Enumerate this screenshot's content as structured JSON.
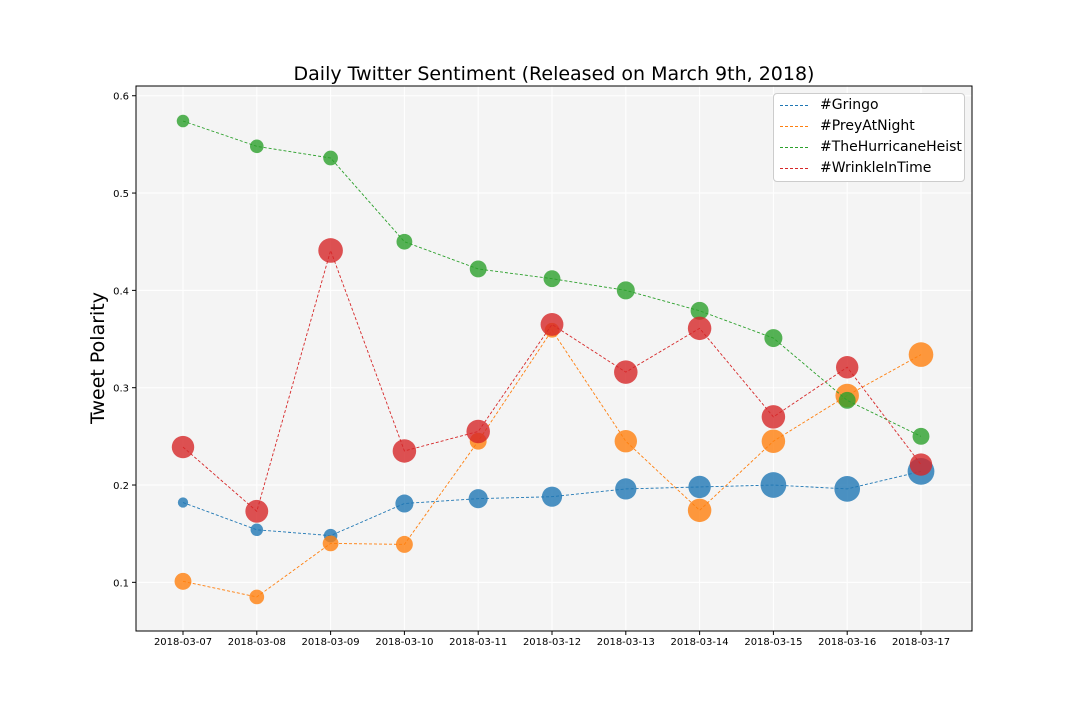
{
  "chart_data": {
    "type": "scatter",
    "title": "Daily Twitter Sentiment (Released on March 9th, 2018)",
    "xlabel": "",
    "ylabel": "Tweet Polarity",
    "x": [
      "2018-03-07",
      "2018-03-08",
      "2018-03-09",
      "2018-03-10",
      "2018-03-11",
      "2018-03-12",
      "2018-03-13",
      "2018-03-14",
      "2018-03-15",
      "2018-03-16",
      "2018-03-17"
    ],
    "ylim": [
      0.05,
      0.61
    ],
    "yticks": [
      0.1,
      0.2,
      0.3,
      0.4,
      0.5,
      0.6
    ],
    "ytick_labels": [
      "0.1",
      "0.2",
      "0.3",
      "0.4",
      "0.5",
      "0.6"
    ],
    "grid": true,
    "legend_position": "top-right",
    "line_style": "dashed",
    "marker_size_encodes": "tweet volume (relative)",
    "series": [
      {
        "name": "#Gringo",
        "color": "#1f77b4",
        "values": [
          0.182,
          0.154,
          0.148,
          0.181,
          0.186,
          0.188,
          0.196,
          0.198,
          0.2,
          0.196,
          0.214
        ],
        "sizes": [
          0.15,
          0.25,
          0.3,
          0.5,
          0.55,
          0.6,
          0.65,
          0.7,
          0.85,
          0.85,
          0.9
        ]
      },
      {
        "name": "#PreyAtNight",
        "color": "#ff7f0e",
        "values": [
          0.101,
          0.085,
          0.14,
          0.139,
          0.245,
          0.359,
          0.245,
          0.174,
          0.245,
          0.292,
          0.334
        ],
        "sizes": [
          0.45,
          0.35,
          0.4,
          0.45,
          0.45,
          0.35,
          0.7,
          0.75,
          0.75,
          0.75,
          0.8
        ]
      },
      {
        "name": "#TheHurricaneHeist",
        "color": "#2ca02c",
        "values": [
          0.574,
          0.548,
          0.536,
          0.45,
          0.422,
          0.412,
          0.4,
          0.379,
          0.351,
          0.287,
          0.25
        ],
        "sizes": [
          0.25,
          0.3,
          0.35,
          0.4,
          0.45,
          0.45,
          0.5,
          0.5,
          0.5,
          0.45,
          0.45
        ]
      },
      {
        "name": "#WrinkleInTime",
        "color": "#d62728",
        "values": [
          0.239,
          0.173,
          0.441,
          0.235,
          0.255,
          0.365,
          0.316,
          0.361,
          0.27,
          0.321,
          0.221
        ],
        "sizes": [
          0.7,
          0.72,
          0.8,
          0.75,
          0.75,
          0.72,
          0.75,
          0.75,
          0.75,
          0.7,
          0.7
        ]
      }
    ]
  }
}
